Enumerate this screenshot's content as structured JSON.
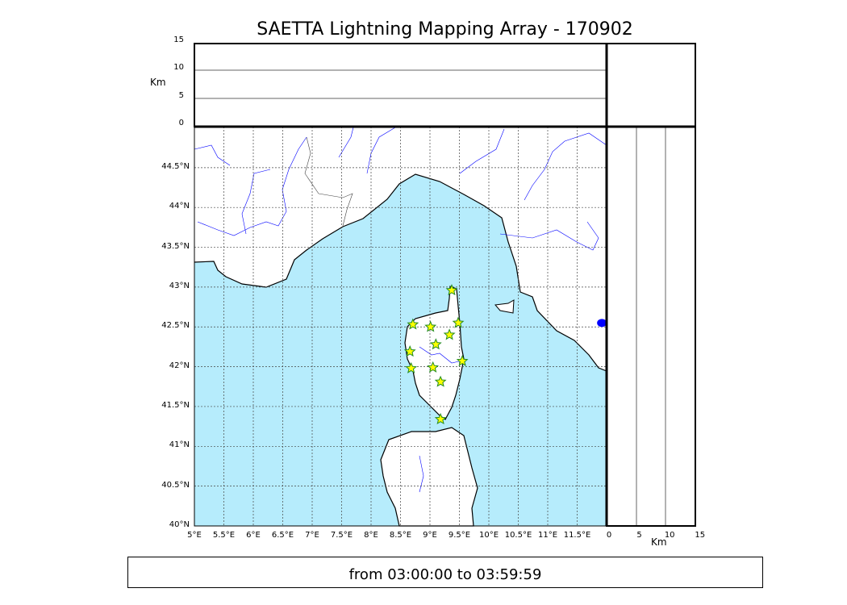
{
  "title": "SAETTA Lightning Mapping Array - 170902",
  "time_range": "from 03:00:00 to 03:59:59",
  "colors": {
    "sea": "#b6ecfc",
    "land": "#ffffff",
    "rivers": "#0000ff",
    "station_fill": "#ffff00",
    "station_edge": "#228b22",
    "source": "#0000ff"
  },
  "chart_data": {
    "type": "scatter",
    "map": {
      "lon_range": [
        5,
        12
      ],
      "lat_range": [
        40,
        45
      ],
      "lon_ticks": [
        "5°E",
        "5.5°E",
        "6°E",
        "6.5°E",
        "7°E",
        "7.5°E",
        "8°E",
        "8.5°E",
        "9°E",
        "9.5°E",
        "10°E",
        "10.5°E",
        "11°E",
        "11.5°E"
      ],
      "lat_ticks": [
        "40°N",
        "40.5°N",
        "41°N",
        "41.5°N",
        "42°N",
        "42.5°N",
        "43°N",
        "43.5°N",
        "44°N",
        "44.5°N"
      ],
      "grid": true
    },
    "altitude_panel_top": {
      "ylabel": "Km",
      "ylim": [
        0,
        15
      ],
      "ticks": [
        "0",
        "5",
        "10",
        "15"
      ]
    },
    "altitude_panel_right": {
      "xlabel": "Km",
      "xlim": [
        0,
        15
      ],
      "ticks": [
        "0",
        "5",
        "10",
        "15"
      ]
    },
    "stations": [
      {
        "lon": 9.37,
        "lat": 42.96
      },
      {
        "lon": 8.71,
        "lat": 42.53
      },
      {
        "lon": 9.01,
        "lat": 42.5
      },
      {
        "lon": 9.48,
        "lat": 42.55
      },
      {
        "lon": 9.33,
        "lat": 42.4
      },
      {
        "lon": 9.1,
        "lat": 42.28
      },
      {
        "lon": 8.66,
        "lat": 42.19
      },
      {
        "lon": 9.55,
        "lat": 42.07
      },
      {
        "lon": 9.05,
        "lat": 41.99
      },
      {
        "lon": 8.68,
        "lat": 41.98
      },
      {
        "lon": 9.18,
        "lat": 41.81
      },
      {
        "lon": 9.18,
        "lat": 41.34
      }
    ],
    "sources": [
      {
        "lon": 11.92,
        "lat": 42.55
      }
    ]
  }
}
